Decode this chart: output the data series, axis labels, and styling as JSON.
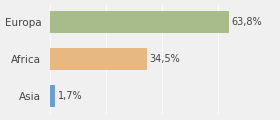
{
  "categories": [
    "Europa",
    "Africa",
    "Asia"
  ],
  "values": [
    63.8,
    34.5,
    1.7
  ],
  "bar_colors": [
    "#a8bb8a",
    "#e8b882",
    "#6b9fd4"
  ],
  "label_texts": [
    "63,8%",
    "34,5%",
    "1,7%"
  ],
  "background_color": "#f0f0f0",
  "xlim": [
    0,
    80
  ],
  "bar_height": 0.6,
  "ylim": [
    -0.5,
    2.5
  ]
}
